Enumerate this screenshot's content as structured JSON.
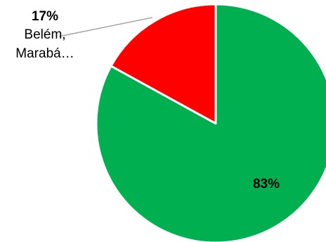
{
  "chart_data": {
    "type": "pie",
    "slices": [
      {
        "label_pct": "83%",
        "category_lines": [],
        "value": 83,
        "color": "#00B050"
      },
      {
        "label_pct": "17%",
        "category_lines": [
          "Belém,",
          "Marabá…"
        ],
        "value": 17,
        "color": "#FF0000"
      }
    ],
    "leader_line_color": "#A6A6A6",
    "start_angle_deg": 0,
    "direction": "clockwise"
  }
}
